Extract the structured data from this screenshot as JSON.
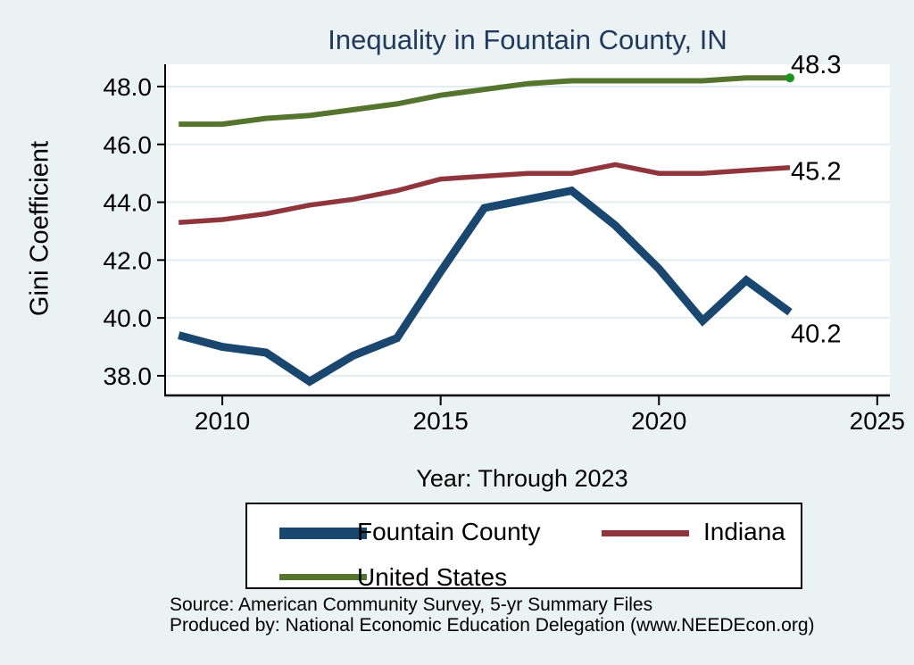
{
  "title": "Inequality in Fountain County, IN",
  "y_axis_label": "Gini Coefficient",
  "x_axis_label": "Year: Through 2023",
  "footer": {
    "source": "Source: American Community Survey, 5-yr Summary Files",
    "produced_by": "Produced by: National Economic Education Delegation (www.NEEDEcon.org)"
  },
  "colors": {
    "background": "#eaf2f3",
    "plot_background": "#ffffff",
    "gridline": "#e2edef",
    "axis": "#000000",
    "title_text": "#20395e",
    "fountain_county": "#1a476f",
    "indiana": "#90353b",
    "united_states": "#55752f",
    "end_marker_green": "#1c941c"
  },
  "legend": {
    "items": [
      {
        "label": "Fountain County",
        "color": "#1a476f"
      },
      {
        "label": "Indiana",
        "color": "#90353b"
      },
      {
        "label": "United States",
        "color": "#55752f"
      }
    ]
  },
  "chart_data": {
    "type": "line",
    "title": "Inequality in Fountain County, IN",
    "xlabel": "Year: Through 2023",
    "ylabel": "Gini Coefficient",
    "grid": "horizontal",
    "legend_position": "bottom",
    "x": [
      2009,
      2010,
      2011,
      2012,
      2013,
      2014,
      2015,
      2016,
      2017,
      2018,
      2019,
      2020,
      2021,
      2022,
      2023
    ],
    "series": [
      {
        "name": "Fountain County",
        "color": "#1a476f",
        "line_width": 9,
        "values": [
          39.4,
          39.0,
          38.8,
          37.8,
          38.7,
          39.3,
          41.6,
          43.8,
          44.1,
          44.4,
          43.2,
          41.7,
          39.9,
          41.3,
          40.2
        ],
        "end_label": "40.2",
        "end_label_dy": 34
      },
      {
        "name": "Indiana",
        "color": "#90353b",
        "line_width": 5.5,
        "values": [
          43.3,
          43.4,
          43.6,
          43.9,
          44.1,
          44.4,
          44.8,
          44.9,
          45.0,
          45.0,
          45.3,
          45.0,
          45.0,
          45.1,
          45.2
        ],
        "end_label": "45.2",
        "end_label_dy": 14
      },
      {
        "name": "United States",
        "color": "#55752f",
        "line_width": 6,
        "values": [
          46.7,
          46.7,
          46.9,
          47.0,
          47.2,
          47.4,
          47.7,
          47.9,
          48.1,
          48.2,
          48.2,
          48.2,
          48.2,
          48.3,
          48.3
        ],
        "end_label": "48.3",
        "end_label_dy": -5,
        "end_marker_color": "#1c941c"
      }
    ],
    "x_ticks": [
      {
        "value": 2010,
        "label": "2010"
      },
      {
        "value": 2015,
        "label": "2015"
      },
      {
        "value": 2020,
        "label": "2020"
      },
      {
        "value": 2025,
        "label": "2025"
      }
    ],
    "y_ticks": [
      {
        "value": 38,
        "label": "38.0"
      },
      {
        "value": 40,
        "label": "40.0"
      },
      {
        "value": 42,
        "label": "42.0"
      },
      {
        "value": 44,
        "label": "44.0"
      },
      {
        "value": 46,
        "label": "46.0"
      },
      {
        "value": 48,
        "label": "48.0"
      }
    ],
    "xlim": [
      2008.69,
      2025.29
    ],
    "ylim": [
      37.32,
      48.77
    ]
  }
}
